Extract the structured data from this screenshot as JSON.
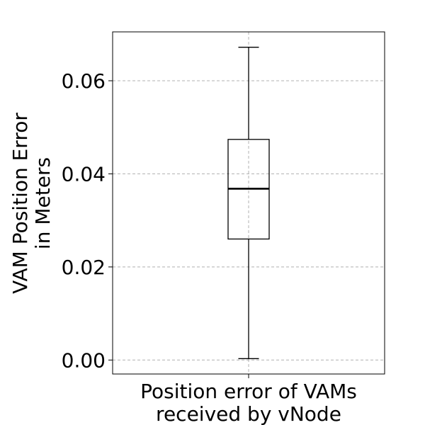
{
  "chart_data": {
    "type": "box",
    "xlabel": [
      "Position error of VAMs",
      "received by vNode"
    ],
    "ylabel": [
      "VAM Position Error",
      "in Meters"
    ],
    "ylim": [
      -0.003,
      0.0705
    ],
    "yticks": [
      0.0,
      0.02,
      0.04,
      0.06
    ],
    "ytick_labels": [
      "0.00",
      "0.02",
      "0.04",
      "0.06"
    ],
    "grid": true,
    "colors": {
      "box": "#000000",
      "median": "#000000",
      "grid": "#b0b0b0"
    },
    "box": {
      "whisker_low": 0.0003,
      "q1": 0.026,
      "median": 0.0368,
      "q3": 0.0474,
      "whisker_high": 0.0672
    }
  }
}
